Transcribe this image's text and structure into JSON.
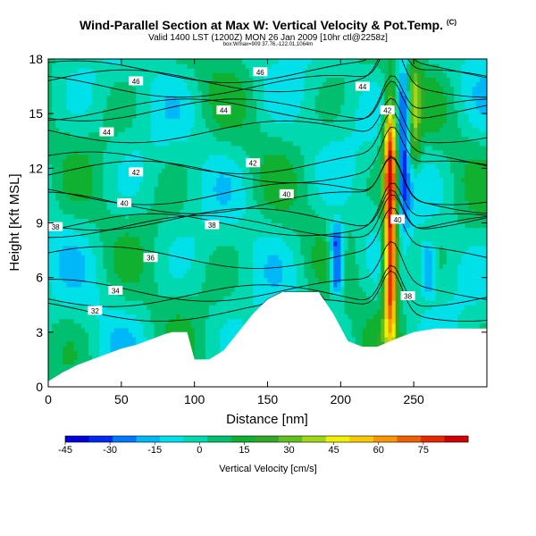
{
  "header": {
    "title": "Wind-Parallel Section at Max W: Vertical Velocity & Pot.Temp.",
    "title_mark": "(C)",
    "valid_line": "Valid 1400 LST (1200Z) MON 26 Jan 2009 [10hr ctl@2258z]",
    "sub_line": "box:Wmax=909 37.76,-122.01,1064m"
  },
  "chart_data": {
    "type": "heatmap",
    "title": "Wind-Parallel Section at Max W: Vertical Velocity & Pot.Temp.",
    "xlabel": "Distance [nm]",
    "ylabel": "Height [Kft MSL]",
    "xlim": [
      0,
      300
    ],
    "ylim": [
      0,
      18
    ],
    "x_ticks": [
      0,
      50,
      100,
      150,
      200,
      250
    ],
    "y_ticks": [
      0,
      3,
      6,
      9,
      12,
      15,
      18
    ],
    "colorbar": {
      "label": "Vertical Velocity [cm/s]",
      "tick_values": [
        -45,
        -30,
        -15,
        0,
        15,
        30,
        45,
        60,
        75
      ],
      "range": [
        -45,
        90
      ],
      "colors": [
        "#0000d8",
        "#0028f0",
        "#0078ff",
        "#00b8f8",
        "#00e0e8",
        "#00d8b0",
        "#00c070",
        "#10b030",
        "#30a828",
        "#60c020",
        "#a0d818",
        "#f0f000",
        "#f8c800",
        "#f89800",
        "#f06000",
        "#e82800",
        "#d00000"
      ]
    },
    "terrain_kft": [
      [
        0,
        0.3
      ],
      [
        10,
        0.8
      ],
      [
        20,
        1.2
      ],
      [
        30,
        1.5
      ],
      [
        40,
        1.8
      ],
      [
        50,
        2.1
      ],
      [
        60,
        2.3
      ],
      [
        70,
        2.6
      ],
      [
        80,
        2.9
      ],
      [
        85,
        3.0
      ],
      [
        95,
        3.0
      ],
      [
        100,
        1.5
      ],
      [
        110,
        1.5
      ],
      [
        120,
        2.0
      ],
      [
        130,
        3.0
      ],
      [
        140,
        4.0
      ],
      [
        150,
        4.8
      ],
      [
        160,
        5.2
      ],
      [
        185,
        5.2
      ],
      [
        195,
        4.0
      ],
      [
        205,
        2.5
      ],
      [
        215,
        2.2
      ],
      [
        225,
        2.2
      ],
      [
        240,
        2.7
      ],
      [
        250,
        3.0
      ],
      [
        265,
        3.2
      ],
      [
        280,
        3.2
      ],
      [
        300,
        3.2
      ]
    ],
    "updrafts": [
      {
        "center_nm": 234,
        "peak_cms": 90,
        "base_kft": 2.5,
        "top_kft": 16
      },
      {
        "center_nm": 250,
        "peak_cms": 30,
        "base_kft": 12,
        "top_kft": 18
      }
    ],
    "downdrafts": [
      {
        "center_nm": 197,
        "peak_cms": -45,
        "base_kft": 5,
        "top_kft": 9
      },
      {
        "center_nm": 243,
        "peak_cms": -35,
        "base_kft": 9,
        "top_kft": 18
      },
      {
        "center_nm": 260,
        "peak_cms": -25,
        "base_kft": 5,
        "top_kft": 8
      }
    ],
    "isentropes": [
      {
        "label": "46",
        "height_kft": 16.8,
        "label_x_nm": 60
      },
      {
        "label": "46",
        "height_kft": 17.3,
        "label_x_nm": 145
      },
      {
        "label": "44",
        "height_kft": 16.5,
        "label_x_nm": 215
      },
      {
        "label": "44",
        "height_kft": 14.0,
        "label_x_nm": 40
      },
      {
        "label": "44",
        "height_kft": 15.2,
        "label_x_nm": 120
      },
      {
        "label": "42",
        "height_kft": 15.2,
        "label_x_nm": 232
      },
      {
        "label": "42",
        "height_kft": 11.8,
        "label_x_nm": 60
      },
      {
        "label": "42",
        "height_kft": 12.3,
        "label_x_nm": 140
      },
      {
        "label": "40",
        "height_kft": 10.1,
        "label_x_nm": 52
      },
      {
        "label": "40",
        "height_kft": 10.6,
        "label_x_nm": 163
      },
      {
        "label": "40",
        "height_kft": 9.2,
        "label_x_nm": 239
      },
      {
        "label": "38",
        "height_kft": 8.8,
        "label_x_nm": 5
      },
      {
        "label": "38",
        "height_kft": 8.9,
        "label_x_nm": 112
      },
      {
        "label": "36",
        "height_kft": 7.1,
        "label_x_nm": 70
      },
      {
        "label": "34",
        "height_kft": 5.3,
        "label_x_nm": 46
      },
      {
        "label": "32",
        "height_kft": 4.2,
        "label_x_nm": 32
      },
      {
        "label": "38",
        "height_kft": 5.0,
        "label_x_nm": 246
      }
    ]
  }
}
